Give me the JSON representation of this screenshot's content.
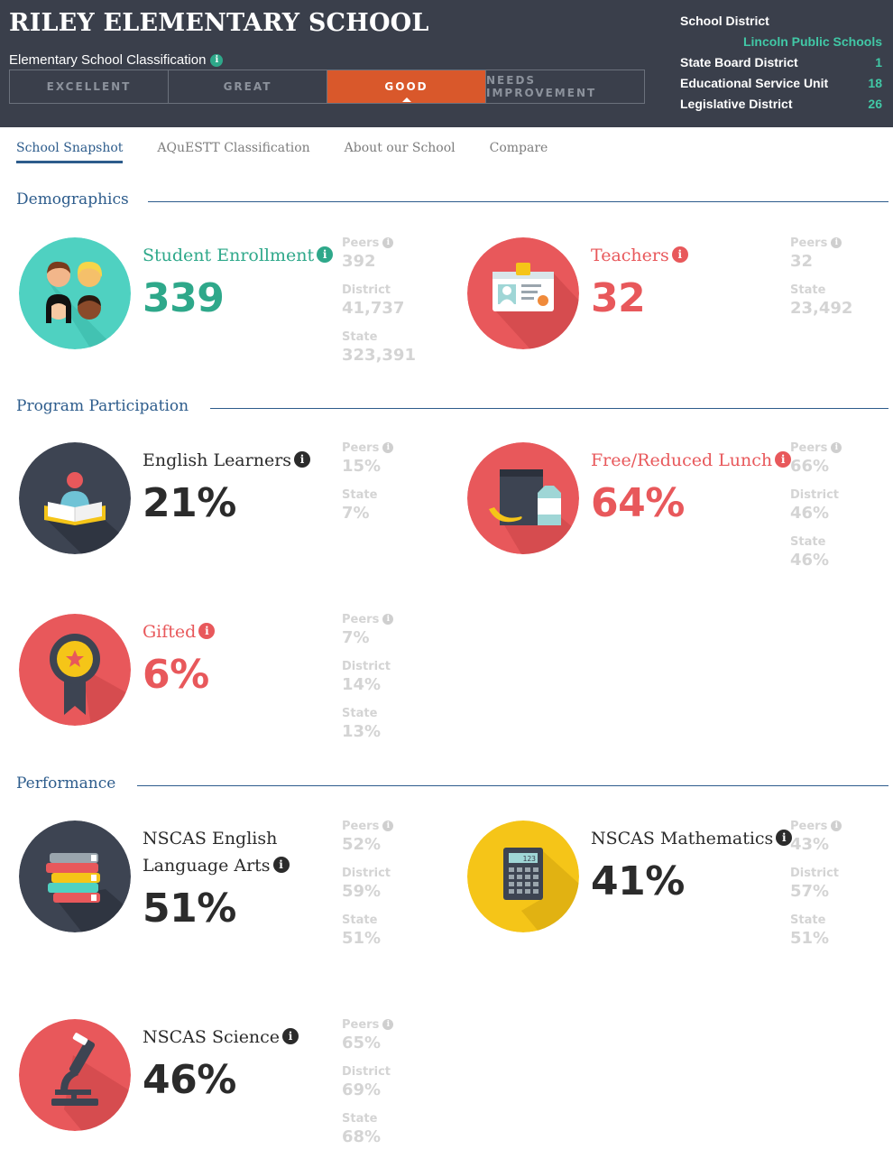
{
  "header": {
    "school_name": "RILEY ELEMENTARY SCHOOL",
    "classification_label": "Elementary School Classification",
    "classification_levels": [
      "EXCELLENT",
      "GREAT",
      "GOOD",
      "NEEDS IMPROVEMENT"
    ],
    "active_classification": "GOOD",
    "district_info": {
      "school_district_label": "School District",
      "school_district_value": "Lincoln Public Schools",
      "state_board_label": "State Board District",
      "state_board_value": "1",
      "esu_label": "Educational Service Unit",
      "esu_value": "18",
      "legislative_label": "Legislative District",
      "legislative_value": "26"
    }
  },
  "tabs": [
    "School Snapshot",
    "AQuESTT Classification",
    "About our School",
    "Compare"
  ],
  "sections": {
    "demographics": "Demographics",
    "program": "Program Participation",
    "performance": "Performance"
  },
  "metrics": {
    "enrollment": {
      "label": "Student Enrollment",
      "value": "339",
      "c1_label": "Peers",
      "c1_value": "392",
      "c2_label": "District",
      "c2_value": "41,737",
      "c3_label": "State",
      "c3_value": "323,391"
    },
    "teachers": {
      "label": "Teachers",
      "value": "32",
      "c1_label": "Peers",
      "c1_value": "32",
      "c2_label": "State",
      "c2_value": "23,492"
    },
    "english_learners": {
      "label": "English Learners",
      "value": "21%",
      "c1_label": "Peers",
      "c1_value": "15%",
      "c2_label": "State",
      "c2_value": "7%"
    },
    "free_lunch": {
      "label": "Free/Reduced Lunch",
      "value": "64%",
      "c1_label": "Peers",
      "c1_value": "66%",
      "c2_label": "District",
      "c2_value": "46%",
      "c3_label": "State",
      "c3_value": "46%"
    },
    "gifted": {
      "label": "Gifted",
      "value": "6%",
      "c1_label": "Peers",
      "c1_value": "7%",
      "c2_label": "District",
      "c2_value": "14%",
      "c3_label": "State",
      "c3_value": "13%"
    },
    "ela": {
      "label_line1": "NSCAS English",
      "label_line2": "Language Arts",
      "value": "51%",
      "c1_label": "Peers",
      "c1_value": "52%",
      "c2_label": "District",
      "c2_value": "59%",
      "c3_label": "State",
      "c3_value": "51%"
    },
    "math": {
      "label": "NSCAS Mathematics",
      "value": "41%",
      "c1_label": "Peers",
      "c1_value": "43%",
      "c2_label": "District",
      "c2_value": "57%",
      "c3_label": "State",
      "c3_value": "51%"
    },
    "science": {
      "label": "NSCAS Science",
      "value": "46%",
      "c1_label": "Peers",
      "c1_value": "65%",
      "c2_label": "District",
      "c2_value": "69%",
      "c3_label": "State",
      "c3_value": "68%"
    }
  },
  "icons": {
    "enrollment": "students-group-icon",
    "teachers": "id-badge-icon",
    "english_learners": "reader-book-icon",
    "free_lunch": "lunch-bag-icon",
    "gifted": "award-ribbon-icon",
    "ela": "books-stack-icon",
    "math": "calculator-icon",
    "science": "microscope-icon",
    "info": "info-icon"
  },
  "calculator_display": "123",
  "colors": {
    "header_bg": "#3a3f4b",
    "accent_orange": "#d9582b",
    "teal": "#2ea88a",
    "red": "#e8585b",
    "navy": "#2d5c8c",
    "yellow": "#f5c518"
  }
}
